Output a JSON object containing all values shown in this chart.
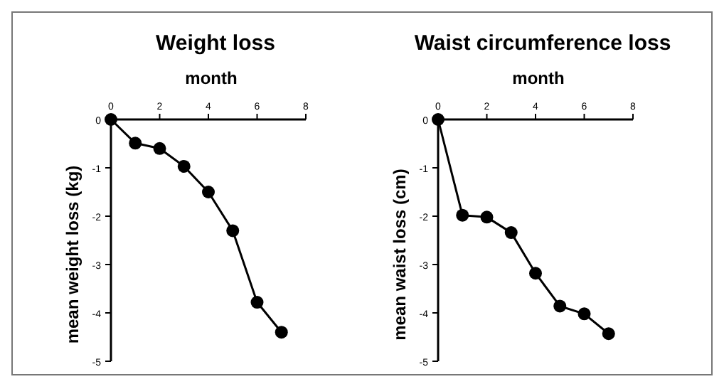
{
  "chart_data": [
    {
      "type": "line",
      "title": "Weight loss",
      "xlabel": "month",
      "ylabel": "mean weight loss (kg)",
      "x": [
        0,
        1,
        2,
        3,
        4,
        5,
        6,
        7
      ],
      "series": [
        {
          "color": "#000000",
          "values": [
            0,
            -0.49,
            -0.6,
            -0.97,
            -1.5,
            -2.3,
            -3.78,
            -4.4
          ]
        }
      ],
      "xlim": [
        0,
        8
      ],
      "xticks": [
        0,
        2,
        4,
        6,
        8
      ],
      "ylim": [
        -5,
        0
      ],
      "yticks": [
        0,
        -1,
        -2,
        -3,
        -4,
        -5
      ],
      "marker": "circle",
      "line_style": "solid"
    },
    {
      "type": "line",
      "title": "Waist circumference loss",
      "xlabel": "month",
      "ylabel": "mean waist loss (cm)",
      "x": [
        0,
        1,
        2,
        3,
        4,
        5,
        6,
        7
      ],
      "series": [
        {
          "color": "#000000",
          "values": [
            0,
            -1.98,
            -2.02,
            -2.34,
            -3.18,
            -3.86,
            -4.02,
            -4.43
          ]
        }
      ],
      "xlim": [
        0,
        8
      ],
      "xticks": [
        0,
        2,
        4,
        6,
        8
      ],
      "ylim": [
        -5,
        0
      ],
      "yticks": [
        0,
        -1,
        -2,
        -3,
        -4,
        -5
      ],
      "marker": "circle",
      "line_style": "solid"
    }
  ]
}
